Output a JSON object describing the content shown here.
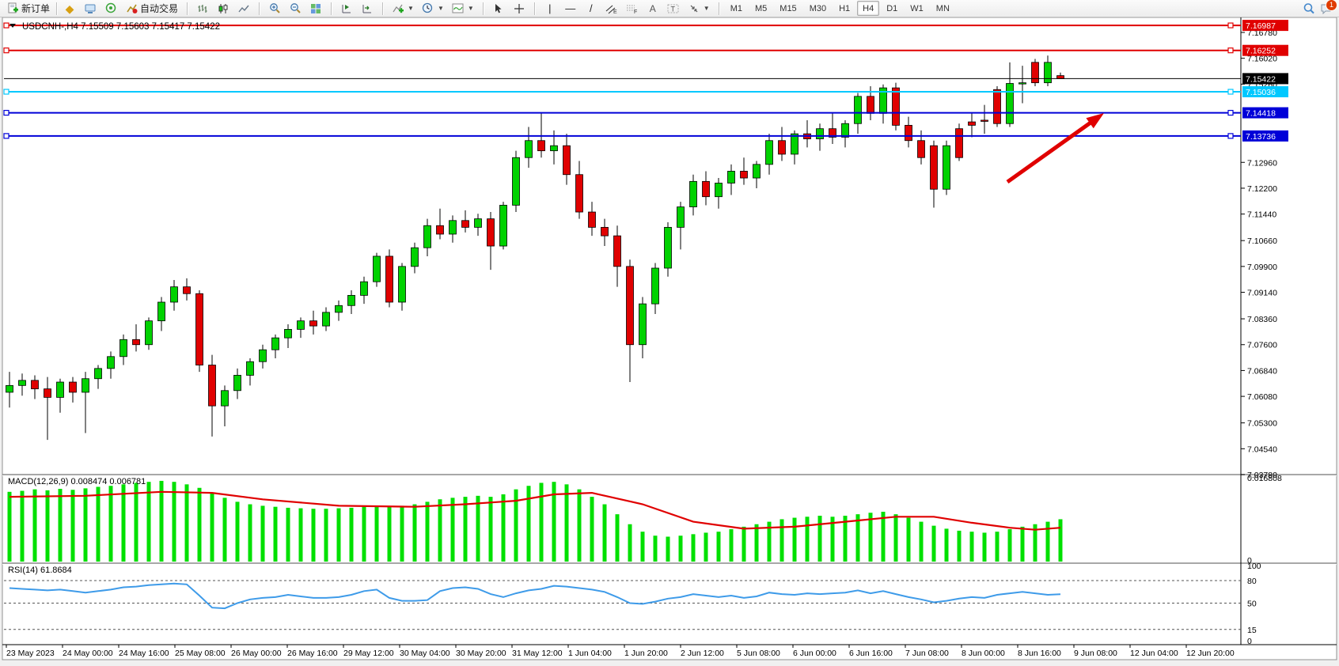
{
  "toolbar": {
    "new_order": "新订单",
    "auto_trading": "自动交易",
    "timeframes": [
      "M1",
      "M5",
      "M15",
      "M30",
      "H1",
      "H4",
      "D1",
      "W1",
      "MN"
    ],
    "active_timeframe": "H4",
    "notification_count": "1"
  },
  "chart": {
    "symbol_period": "USDCNH-,H4",
    "ohlc_text": "7.15509 7.15603 7.15417 7.15422",
    "price_lines": [
      {
        "price": "7.16987",
        "value": 7.16987,
        "color": "#e00000",
        "width": 2,
        "kind": "resistance"
      },
      {
        "price": "7.16252",
        "value": 7.16252,
        "color": "#e00000",
        "width": 2,
        "kind": "resistance"
      },
      {
        "price": "7.15422",
        "value": 7.15422,
        "color": "#000000",
        "width": 1,
        "kind": "current-price"
      },
      {
        "price": "7.15036",
        "value": 7.15036,
        "color": "#00c8ff",
        "width": 2,
        "kind": "level"
      },
      {
        "price": "7.14418",
        "value": 7.14418,
        "color": "#0000d8",
        "width": 2,
        "kind": "support"
      },
      {
        "price": "7.13736",
        "value": 7.13736,
        "color": "#0000d8",
        "width": 2,
        "kind": "support"
      }
    ],
    "y_ticks": [
      "7.16780",
      "7.16020",
      "7.15260",
      "7.12960",
      "7.12200",
      "7.11440",
      "7.10660",
      "7.09900",
      "7.09140",
      "7.08360",
      "7.07600",
      "7.06840",
      "7.06080",
      "7.05300",
      "7.04540",
      "7.03780"
    ],
    "time_labels": [
      "23 May 2023",
      "24 May 00:00",
      "24 May 16:00",
      "25 May 08:00",
      "26 May 00:00",
      "26 May 16:00",
      "29 May 12:00",
      "30 May 04:00",
      "30 May 20:00",
      "31 May 12:00",
      "1 Jun 04:00",
      "1 Jun 20:00",
      "2 Jun 12:00",
      "5 Jun 08:00",
      "6 Jun 00:00",
      "6 Jun 16:00",
      "7 Jun 08:00",
      "8 Jun 00:00",
      "8 Jun 16:00",
      "9 Jun 08:00",
      "12 Jun 04:00",
      "12 Jun 20:00"
    ],
    "annotation_arrow": {
      "from": [
        1273,
        230
      ],
      "to": [
        1395,
        143
      ],
      "color": "#e00000"
    }
  },
  "macd": {
    "label": "MACD(12,26,9)",
    "value_main": "0.008474",
    "value_signal": "0.006781",
    "scale_max": "0.016808",
    "scale_min": "0"
  },
  "rsi": {
    "label": "RSI(14)",
    "value": "61.8684",
    "levels": [
      "100",
      "80",
      "50",
      "15",
      "0"
    ],
    "dashed_levels": [
      80,
      50,
      15
    ]
  },
  "chart_data": [
    {
      "type": "candlestick",
      "title": "USDCNH-,H4",
      "open": 7.15509,
      "high": 7.15603,
      "low": 7.15417,
      "close": 7.15422,
      "up_color": "#00d200",
      "down_color": "#e00000",
      "ylim": [
        7.0378,
        7.1725
      ],
      "candles": [
        [
          7.062,
          7.068,
          7.0575,
          7.064
        ],
        [
          7.064,
          7.0675,
          7.061,
          7.0655
        ],
        [
          7.0655,
          7.067,
          7.06,
          7.063
        ],
        [
          7.063,
          7.0665,
          7.048,
          7.0605
        ],
        [
          7.0605,
          7.066,
          7.056,
          7.065
        ],
        [
          7.065,
          7.0665,
          7.059,
          7.062
        ],
        [
          7.062,
          7.068,
          7.05,
          7.066
        ],
        [
          7.066,
          7.07,
          7.063,
          7.069
        ],
        [
          7.069,
          7.074,
          7.066,
          7.0725
        ],
        [
          7.0725,
          7.079,
          7.07,
          7.0775
        ],
        [
          7.0775,
          7.082,
          7.074,
          7.076
        ],
        [
          7.076,
          7.084,
          7.0745,
          7.083
        ],
        [
          7.083,
          7.09,
          7.08,
          7.0885
        ],
        [
          7.0885,
          7.095,
          7.086,
          7.093
        ],
        [
          7.093,
          7.0955,
          7.089,
          7.091
        ],
        [
          7.091,
          7.092,
          7.068,
          7.07
        ],
        [
          7.07,
          7.073,
          7.049,
          7.058
        ],
        [
          7.058,
          7.064,
          7.052,
          7.0625
        ],
        [
          7.0625,
          7.069,
          7.06,
          7.067
        ],
        [
          7.067,
          7.072,
          7.064,
          7.071
        ],
        [
          7.071,
          7.076,
          7.069,
          7.0745
        ],
        [
          7.0745,
          7.079,
          7.072,
          7.078
        ],
        [
          7.078,
          7.082,
          7.075,
          7.0805
        ],
        [
          7.0805,
          7.084,
          7.078,
          7.083
        ],
        [
          7.083,
          7.086,
          7.079,
          7.0815
        ],
        [
          7.0815,
          7.087,
          7.08,
          7.0855
        ],
        [
          7.0855,
          7.089,
          7.083,
          7.0875
        ],
        [
          7.0875,
          7.092,
          7.085,
          7.0905
        ],
        [
          7.0905,
          7.096,
          7.088,
          7.0945
        ],
        [
          7.0945,
          7.103,
          7.093,
          7.102
        ],
        [
          7.102,
          7.104,
          7.087,
          7.0885
        ],
        [
          7.0885,
          7.1,
          7.086,
          7.099
        ],
        [
          7.099,
          7.106,
          7.097,
          7.1045
        ],
        [
          7.1045,
          7.113,
          7.102,
          7.111
        ],
        [
          7.111,
          7.116,
          7.107,
          7.1085
        ],
        [
          7.1085,
          7.114,
          7.106,
          7.1125
        ],
        [
          7.1125,
          7.1155,
          7.109,
          7.1105
        ],
        [
          7.1105,
          7.1145,
          7.108,
          7.113
        ],
        [
          7.113,
          7.115,
          7.098,
          7.105
        ],
        [
          7.105,
          7.118,
          7.104,
          7.117
        ],
        [
          7.117,
          7.133,
          7.115,
          7.131
        ],
        [
          7.131,
          7.14,
          7.128,
          7.136
        ],
        [
          7.136,
          7.144,
          7.131,
          7.133
        ],
        [
          7.133,
          7.139,
          7.129,
          7.1345
        ],
        [
          7.1345,
          7.138,
          7.123,
          7.126
        ],
        [
          7.126,
          7.13,
          7.113,
          7.115
        ],
        [
          7.115,
          7.118,
          7.108,
          7.1105
        ],
        [
          7.1105,
          7.113,
          7.105,
          7.108
        ],
        [
          7.108,
          7.111,
          7.093,
          7.099
        ],
        [
          7.099,
          7.101,
          7.065,
          7.076
        ],
        [
          7.076,
          7.09,
          7.072,
          7.088
        ],
        [
          7.088,
          7.1,
          7.085,
          7.0985
        ],
        [
          7.0985,
          7.112,
          7.096,
          7.1105
        ],
        [
          7.1105,
          7.118,
          7.104,
          7.1165
        ],
        [
          7.1165,
          7.126,
          7.114,
          7.124
        ],
        [
          7.124,
          7.127,
          7.117,
          7.1195
        ],
        [
          7.1195,
          7.125,
          7.116,
          7.1235
        ],
        [
          7.1235,
          7.129,
          7.12,
          7.127
        ],
        [
          7.127,
          7.131,
          7.123,
          7.125
        ],
        [
          7.125,
          7.13,
          7.122,
          7.129
        ],
        [
          7.129,
          7.138,
          7.126,
          7.136
        ],
        [
          7.136,
          7.14,
          7.13,
          7.132
        ],
        [
          7.132,
          7.139,
          7.129,
          7.138
        ],
        [
          7.138,
          7.142,
          7.134,
          7.1365
        ],
        [
          7.1365,
          7.141,
          7.133,
          7.1395
        ],
        [
          7.1395,
          7.144,
          7.135,
          7.137
        ],
        [
          7.137,
          7.142,
          7.134,
          7.141
        ],
        [
          7.141,
          7.15,
          7.138,
          7.149
        ],
        [
          7.149,
          7.152,
          7.142,
          7.144
        ],
        [
          7.144,
          7.1525,
          7.141,
          7.1515
        ],
        [
          7.1515,
          7.153,
          7.139,
          7.1405
        ],
        [
          7.1405,
          7.143,
          7.134,
          7.136
        ],
        [
          7.136,
          7.139,
          7.129,
          7.131
        ],
        [
          7.1345,
          7.136,
          7.1163,
          7.1217
        ],
        [
          7.1217,
          7.136,
          7.12,
          7.1345
        ],
        [
          7.1395,
          7.141,
          7.13,
          7.131
        ],
        [
          7.1415,
          7.144,
          7.137,
          7.1405
        ],
        [
          7.142,
          7.1465,
          7.138,
          7.1418
        ],
        [
          7.151,
          7.152,
          7.14,
          7.141
        ],
        [
          7.141,
          7.159,
          7.14,
          7.1528
        ],
        [
          7.1528,
          7.158,
          7.147,
          7.153
        ],
        [
          7.159,
          7.16,
          7.152,
          7.153
        ],
        [
          7.153,
          7.161,
          7.152,
          7.159
        ],
        [
          7.1551,
          7.156,
          7.1542,
          7.1542
        ]
      ]
    },
    {
      "type": "bar",
      "title": "MACD(12,26,9)",
      "ylim": [
        0,
        0.016808
      ],
      "bar_color": "#00e000",
      "signal_color": "#e00000",
      "histogram": [
        0.014,
        0.0142,
        0.0145,
        0.0143,
        0.0146,
        0.0144,
        0.0147,
        0.015,
        0.0152,
        0.0155,
        0.0158,
        0.016,
        0.0162,
        0.016,
        0.0155,
        0.0148,
        0.0138,
        0.0128,
        0.012,
        0.0115,
        0.0112,
        0.011,
        0.0108,
        0.0107,
        0.0106,
        0.0106,
        0.0107,
        0.0108,
        0.011,
        0.0112,
        0.011,
        0.0112,
        0.0115,
        0.012,
        0.0125,
        0.0128,
        0.013,
        0.0132,
        0.013,
        0.0135,
        0.0145,
        0.0152,
        0.0158,
        0.016,
        0.0155,
        0.0145,
        0.013,
        0.0115,
        0.0095,
        0.0075,
        0.006,
        0.0052,
        0.005,
        0.0052,
        0.0055,
        0.0058,
        0.006,
        0.0065,
        0.007,
        0.0075,
        0.008,
        0.0085,
        0.0088,
        0.009,
        0.0092,
        0.009,
        0.0092,
        0.0095,
        0.0098,
        0.01,
        0.0095,
        0.0088,
        0.008,
        0.0072,
        0.0066,
        0.0062,
        0.006,
        0.0058,
        0.006,
        0.0065,
        0.007,
        0.0075,
        0.008,
        0.0085
      ],
      "signal_points": [
        [
          0,
          0.013
        ],
        [
          6,
          0.0132
        ],
        [
          12,
          0.014
        ],
        [
          16,
          0.0138
        ],
        [
          20,
          0.0125
        ],
        [
          26,
          0.0112
        ],
        [
          32,
          0.011
        ],
        [
          36,
          0.0115
        ],
        [
          40,
          0.0122
        ],
        [
          43,
          0.0135
        ],
        [
          46,
          0.0138
        ],
        [
          50,
          0.0115
        ],
        [
          54,
          0.008
        ],
        [
          58,
          0.0066
        ],
        [
          62,
          0.007
        ],
        [
          66,
          0.008
        ],
        [
          70,
          0.009
        ],
        [
          73,
          0.009
        ],
        [
          76,
          0.0078
        ],
        [
          79,
          0.0068
        ],
        [
          81,
          0.0064
        ],
        [
          83,
          0.0068
        ]
      ]
    },
    {
      "type": "line",
      "title": "RSI(14)",
      "ylim": [
        0,
        100
      ],
      "line_color": "#3e9be9",
      "values": [
        70,
        69,
        68,
        67,
        68,
        66,
        64,
        66,
        68,
        71,
        72,
        74,
        75,
        76,
        75,
        60,
        44,
        43,
        50,
        55,
        57,
        58,
        61,
        59,
        57,
        57,
        58,
        61,
        66,
        68,
        57,
        53,
        53,
        54,
        66,
        70,
        71,
        69,
        62,
        58,
        63,
        67,
        69,
        73,
        72,
        70,
        68,
        65,
        58,
        50,
        49,
        52,
        56,
        58,
        62,
        60,
        58,
        60,
        57,
        59,
        64,
        62,
        61,
        63,
        62,
        63,
        64,
        67,
        63,
        66,
        62,
        58,
        55,
        51,
        53,
        56,
        58,
        57,
        61,
        63,
        65,
        63,
        61,
        61.87
      ]
    }
  ]
}
